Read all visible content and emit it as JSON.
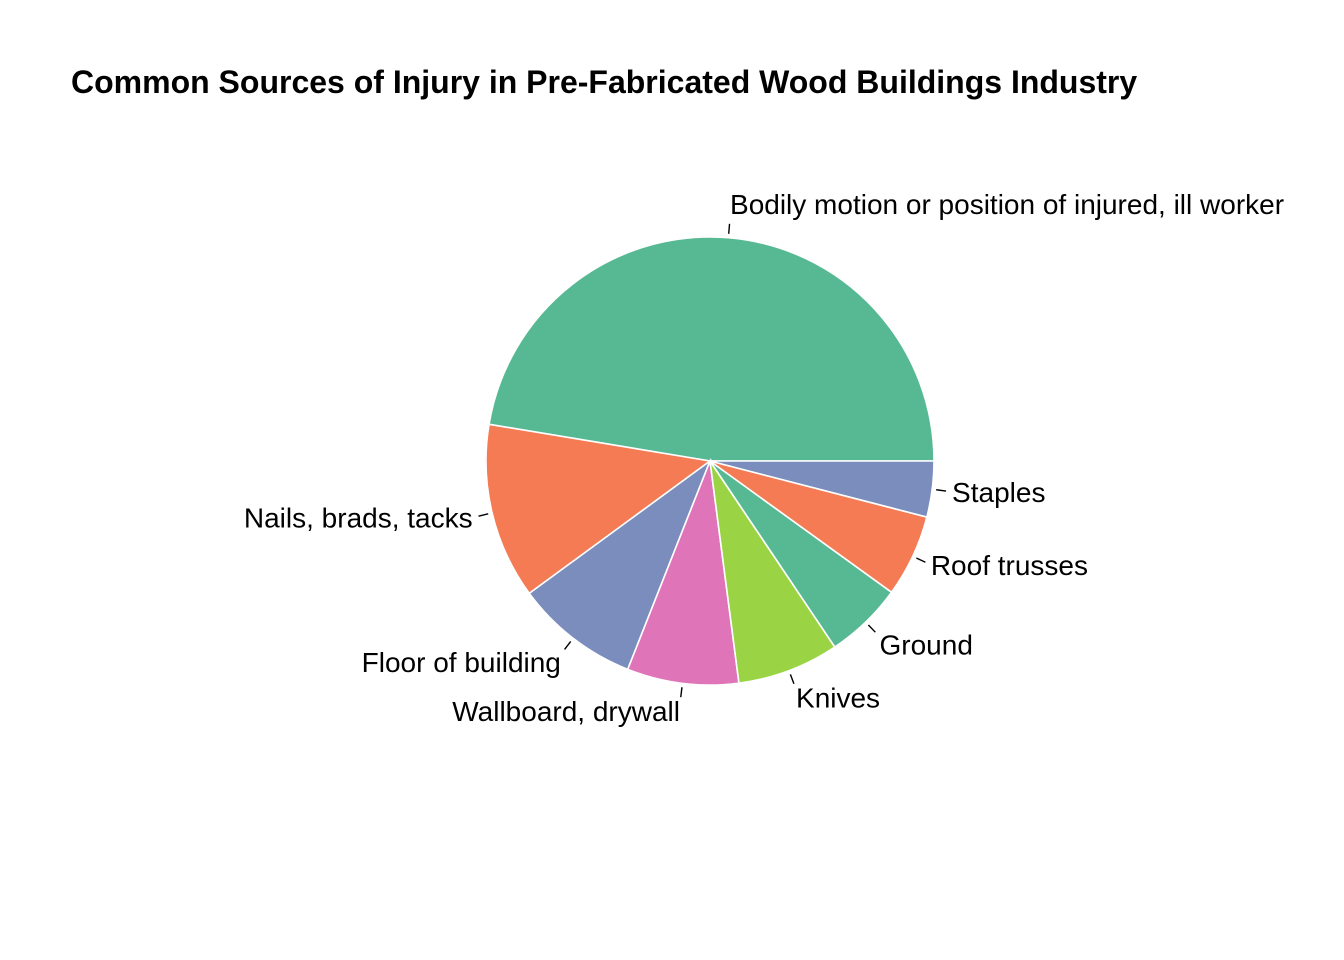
{
  "chart_data": {
    "type": "pie",
    "title": "Common Sources of Injury in Pre-Fabricated Wood Buildings Industry",
    "start": "right, counter-clockwise",
    "legend": "none",
    "slices": [
      {
        "label": "Bodily motion or position of injured, ill worker",
        "value": 47.1,
        "color": "#57b993"
      },
      {
        "label": "Nails, brads, tacks",
        "value": 12.6,
        "color": "#f47b53"
      },
      {
        "label": "Floor of building",
        "value": 8.9,
        "color": "#7b8dbd"
      },
      {
        "label": "Wallboard, drywall",
        "value": 8.0,
        "color": "#df75b8"
      },
      {
        "label": "Knives",
        "value": 7.3,
        "color": "#9ad445"
      },
      {
        "label": "Ground",
        "value": 5.6,
        "color": "#57b993"
      },
      {
        "label": "Roof trusses",
        "value": 5.9,
        "color": "#f47b53"
      },
      {
        "label": "Staples",
        "value": 4.0,
        "color": "#7b8dbd"
      }
    ]
  }
}
